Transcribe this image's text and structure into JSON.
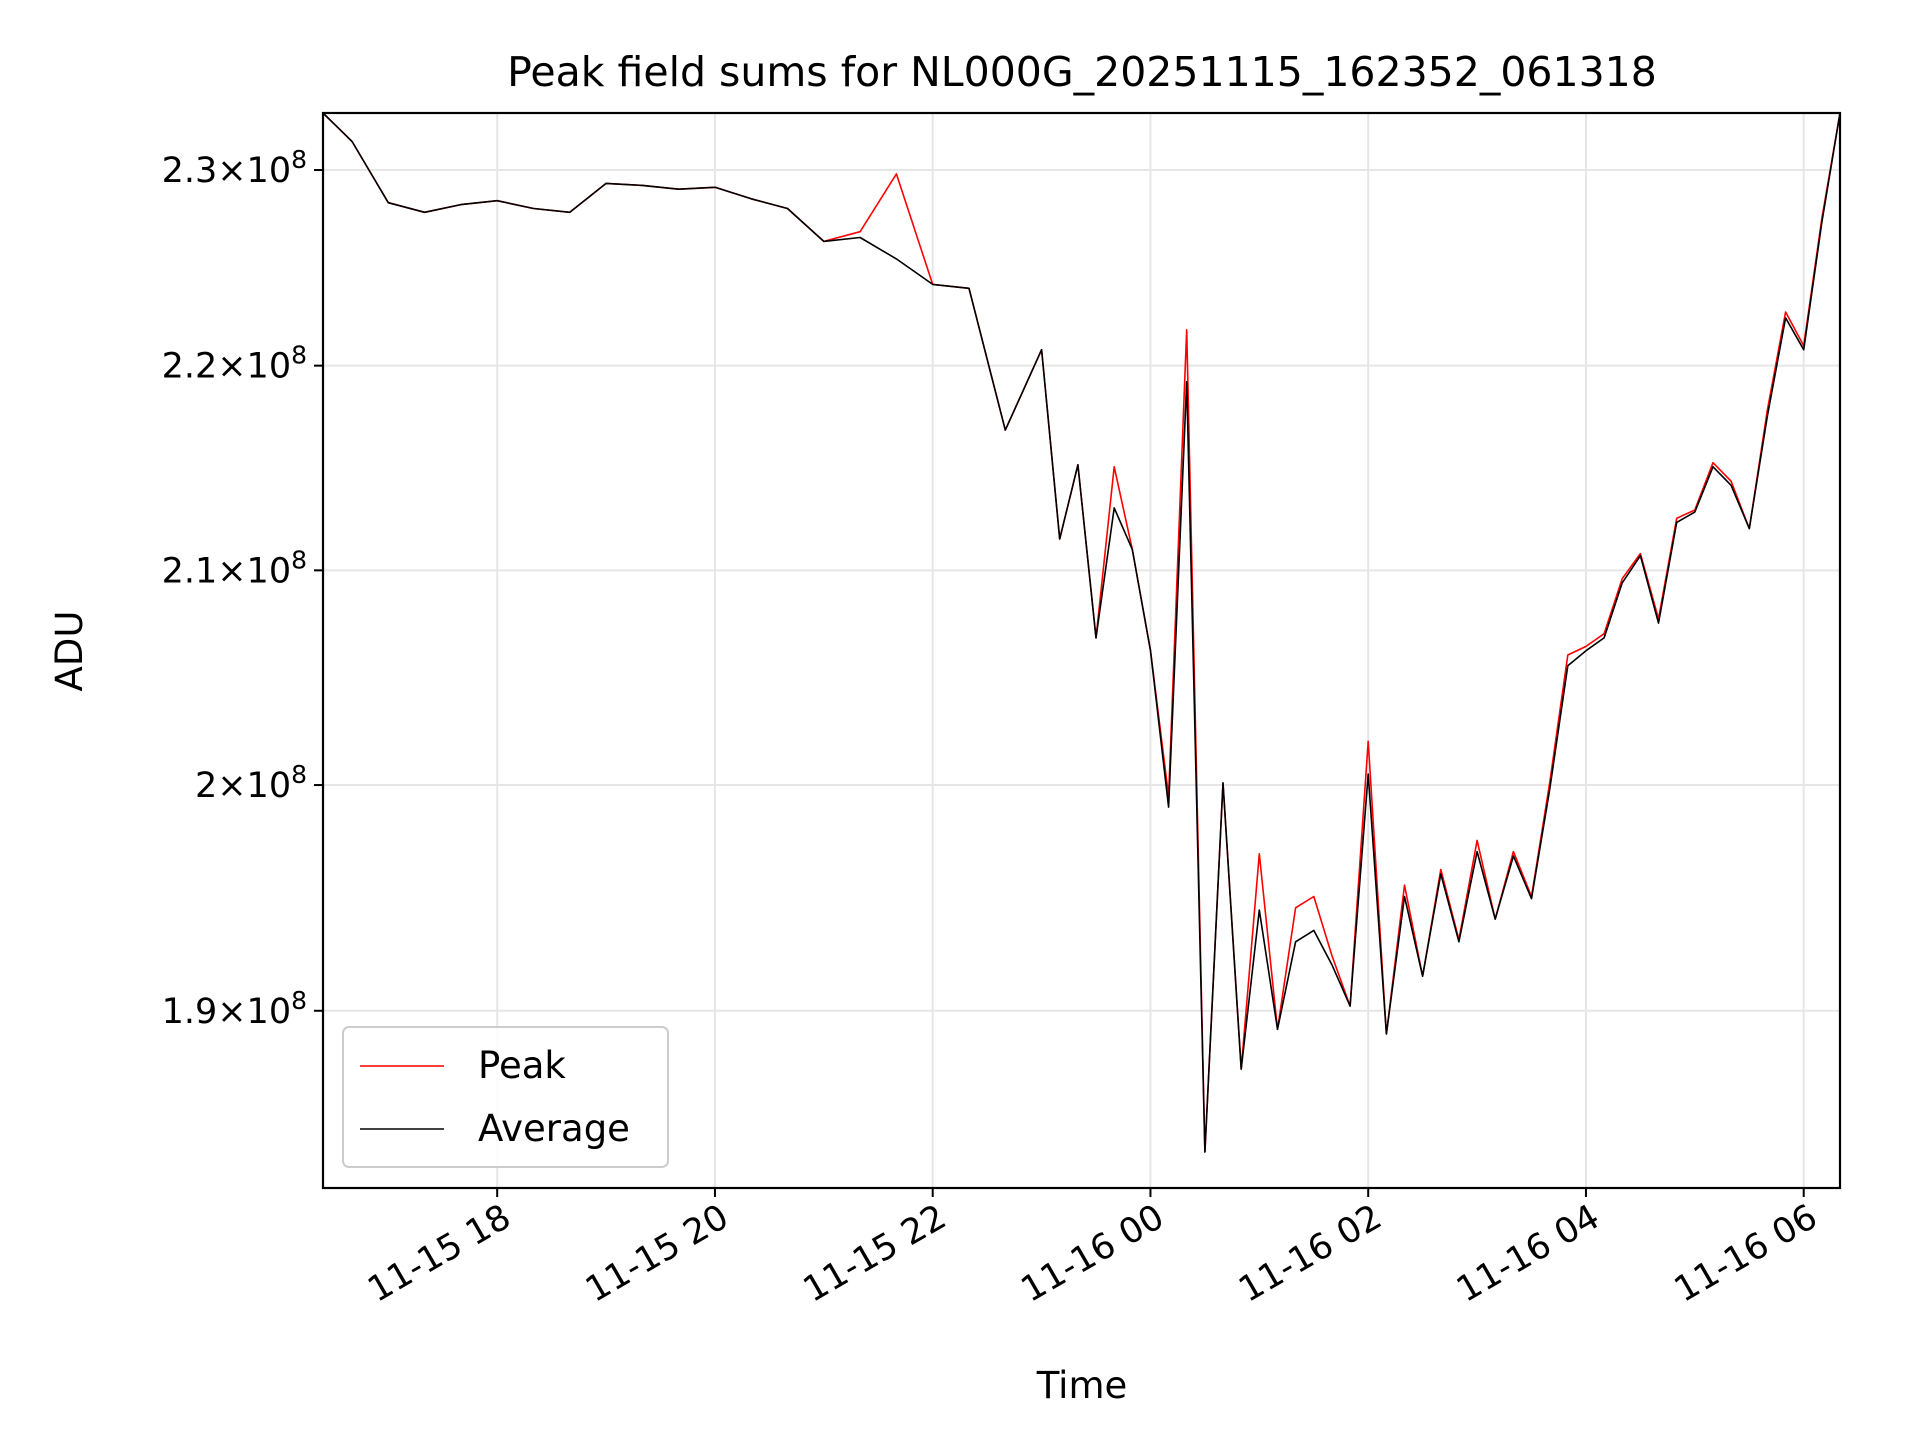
{
  "chart_data": {
    "type": "line",
    "title": "Peak field sums for NL000G_20251115_162352_061318",
    "xlabel": "Time",
    "ylabel": "ADU",
    "yscale": "log",
    "xlim": [
      "2025-11-15 16:24",
      "2025-11-16 06:20"
    ],
    "ylim": [
      182500000,
      233000000
    ],
    "grid": true,
    "legend": "lower-left",
    "x_ticks": [
      {
        "value": "2025-11-15 18:00",
        "label": "11-15 18"
      },
      {
        "value": "2025-11-15 20:00",
        "label": "11-15 20"
      },
      {
        "value": "2025-11-15 22:00",
        "label": "11-15 22"
      },
      {
        "value": "2025-11-16 00:00",
        "label": "11-16 00"
      },
      {
        "value": "2025-11-16 02:00",
        "label": "11-16 02"
      },
      {
        "value": "2025-11-16 04:00",
        "label": "11-16 04"
      },
      {
        "value": "2025-11-16 06:00",
        "label": "11-16 06"
      }
    ],
    "y_ticks": [
      {
        "value": 190000000,
        "mant": "1.9",
        "exp": "8"
      },
      {
        "value": 200000000,
        "mant": "2",
        "exp": "8"
      },
      {
        "value": 210000000,
        "mant": "2.1",
        "exp": "8"
      },
      {
        "value": 220000000,
        "mant": "2.2",
        "exp": "8"
      },
      {
        "value": 230000000,
        "mant": "2.3",
        "exp": "8"
      }
    ],
    "x": [
      "2025-11-15 16:24",
      "2025-11-15 16:40",
      "2025-11-15 17:00",
      "2025-11-15 17:20",
      "2025-11-15 17:40",
      "2025-11-15 18:00",
      "2025-11-15 18:20",
      "2025-11-15 18:40",
      "2025-11-15 19:00",
      "2025-11-15 19:20",
      "2025-11-15 19:40",
      "2025-11-15 20:00",
      "2025-11-15 20:20",
      "2025-11-15 20:40",
      "2025-11-15 21:00",
      "2025-11-15 21:20",
      "2025-11-15 21:40",
      "2025-11-15 22:00",
      "2025-11-15 22:20",
      "2025-11-15 22:40",
      "2025-11-15 23:00",
      "2025-11-15 23:10",
      "2025-11-15 23:20",
      "2025-11-15 23:30",
      "2025-11-15 23:40",
      "2025-11-15 23:50",
      "2025-11-16 00:00",
      "2025-11-16 00:10",
      "2025-11-16 00:20",
      "2025-11-16 00:30",
      "2025-11-16 00:40",
      "2025-11-16 00:50",
      "2025-11-16 01:00",
      "2025-11-16 01:10",
      "2025-11-16 01:20",
      "2025-11-16 01:30",
      "2025-11-16 01:40",
      "2025-11-16 01:50",
      "2025-11-16 02:00",
      "2025-11-16 02:10",
      "2025-11-16 02:20",
      "2025-11-16 02:30",
      "2025-11-16 02:40",
      "2025-11-16 02:50",
      "2025-11-16 03:00",
      "2025-11-16 03:10",
      "2025-11-16 03:20",
      "2025-11-16 03:30",
      "2025-11-16 03:40",
      "2025-11-16 03:50",
      "2025-11-16 04:00",
      "2025-11-16 04:10",
      "2025-11-16 04:20",
      "2025-11-16 04:30",
      "2025-11-16 04:40",
      "2025-11-16 04:50",
      "2025-11-16 05:00",
      "2025-11-16 05:10",
      "2025-11-16 05:20",
      "2025-11-16 05:30",
      "2025-11-16 05:40",
      "2025-11-16 05:50",
      "2025-11-16 06:00",
      "2025-11-16 06:10",
      "2025-11-16 06:20"
    ],
    "series": [
      {
        "name": "Peak",
        "color": "#ff0000",
        "values": [
          233000000,
          231500000,
          228300000,
          227800000,
          228200000,
          228400000,
          228000000,
          227800000,
          229300000,
          229200000,
          229000000,
          229100000,
          228500000,
          228000000,
          226300000,
          226800000,
          229800000,
          224100000,
          223900000,
          216800000,
          220800000,
          211500000,
          215100000,
          206800000,
          215000000,
          211000000,
          206200000,
          199500000,
          221800000,
          184000000,
          200100000,
          187500000,
          196900000,
          189200000,
          194500000,
          195000000,
          192400000,
          190200000,
          202000000,
          189000000,
          195500000,
          191500000,
          196200000,
          193100000,
          197500000,
          194000000,
          197000000,
          195000000,
          200100000,
          206000000,
          206400000,
          207000000,
          209600000,
          210800000,
          207700000,
          212500000,
          212900000,
          215200000,
          214300000,
          212000000,
          217800000,
          222700000,
          221000000,
          227500000,
          233000000
        ]
      },
      {
        "name": "Average",
        "color": "#000000",
        "values": [
          233000000,
          231500000,
          228300000,
          227800000,
          228200000,
          228400000,
          228000000,
          227800000,
          229300000,
          229200000,
          229000000,
          229100000,
          228500000,
          228000000,
          226300000,
          226500000,
          225400000,
          224100000,
          223900000,
          216800000,
          220800000,
          211500000,
          215100000,
          206800000,
          213000000,
          211000000,
          206200000,
          199000000,
          219200000,
          184000000,
          200100000,
          187500000,
          194400000,
          189200000,
          193000000,
          193500000,
          192000000,
          190200000,
          200500000,
          189000000,
          195000000,
          191500000,
          196000000,
          193000000,
          197000000,
          194000000,
          196800000,
          194900000,
          199800000,
          205500000,
          206200000,
          206800000,
          209400000,
          210700000,
          207500000,
          212300000,
          212800000,
          215000000,
          214100000,
          212000000,
          217500000,
          222400000,
          220800000,
          227300000,
          233000000
        ]
      }
    ]
  }
}
